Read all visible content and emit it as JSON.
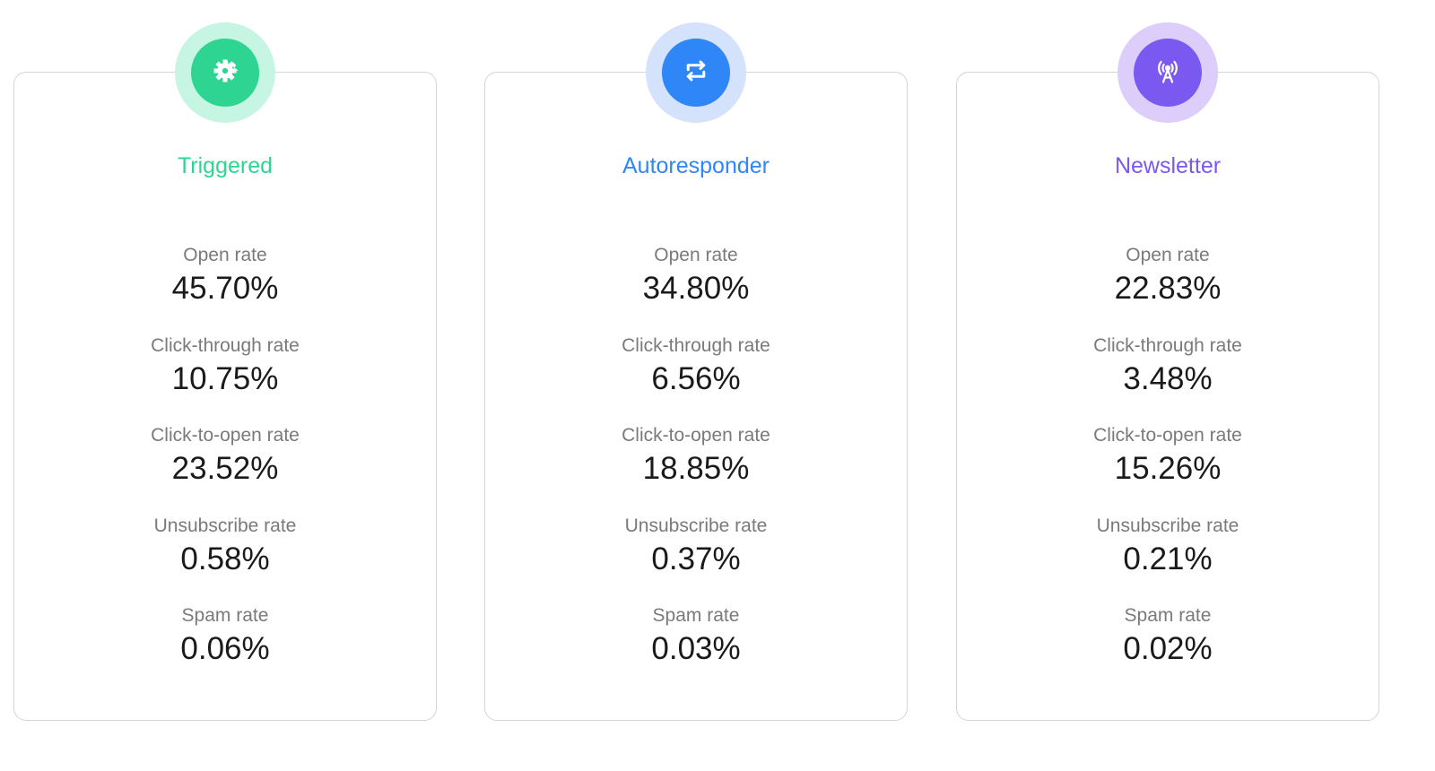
{
  "cards": [
    {
      "title": "Triggered",
      "icon": "gear-icon",
      "accent": "#2ed592",
      "halo": "#c6f5e3",
      "metrics": [
        {
          "label": "Open rate",
          "value": "45.70%"
        },
        {
          "label": "Click-through rate",
          "value": "10.75%"
        },
        {
          "label": "Click-to-open rate",
          "value": "23.52%"
        },
        {
          "label": "Unsubscribe rate",
          "value": "0.58%"
        },
        {
          "label": "Spam rate",
          "value": "0.06%"
        }
      ]
    },
    {
      "title": "Autoresponder",
      "icon": "repeat-icon",
      "accent": "#2f86f6",
      "halo": "#d4e2fb",
      "metrics": [
        {
          "label": "Open rate",
          "value": "34.80%"
        },
        {
          "label": "Click-through rate",
          "value": "6.56%"
        },
        {
          "label": "Click-to-open rate",
          "value": "18.85%"
        },
        {
          "label": "Unsubscribe rate",
          "value": "0.37%"
        },
        {
          "label": "Spam rate",
          "value": "0.03%"
        }
      ]
    },
    {
      "title": "Newsletter",
      "icon": "broadcast-tower-icon",
      "accent": "#7b59f0",
      "halo": "#ddcdfb",
      "metrics": [
        {
          "label": "Open rate",
          "value": "22.83%"
        },
        {
          "label": "Click-through rate",
          "value": "3.48%"
        },
        {
          "label": "Click-to-open rate",
          "value": "15.26%"
        },
        {
          "label": "Unsubscribe rate",
          "value": "0.21%"
        },
        {
          "label": "Spam rate",
          "value": "0.02%"
        }
      ]
    }
  ]
}
